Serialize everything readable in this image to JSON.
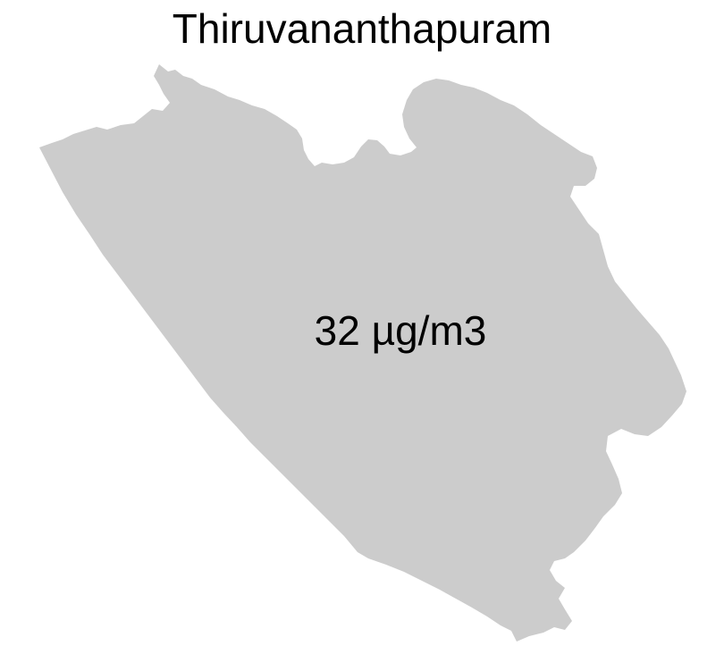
{
  "map": {
    "title": "Thiruvananthapuram",
    "region_label": "32 µg/m3",
    "region_fill": "#cccccc",
    "background": "#ffffff"
  }
}
